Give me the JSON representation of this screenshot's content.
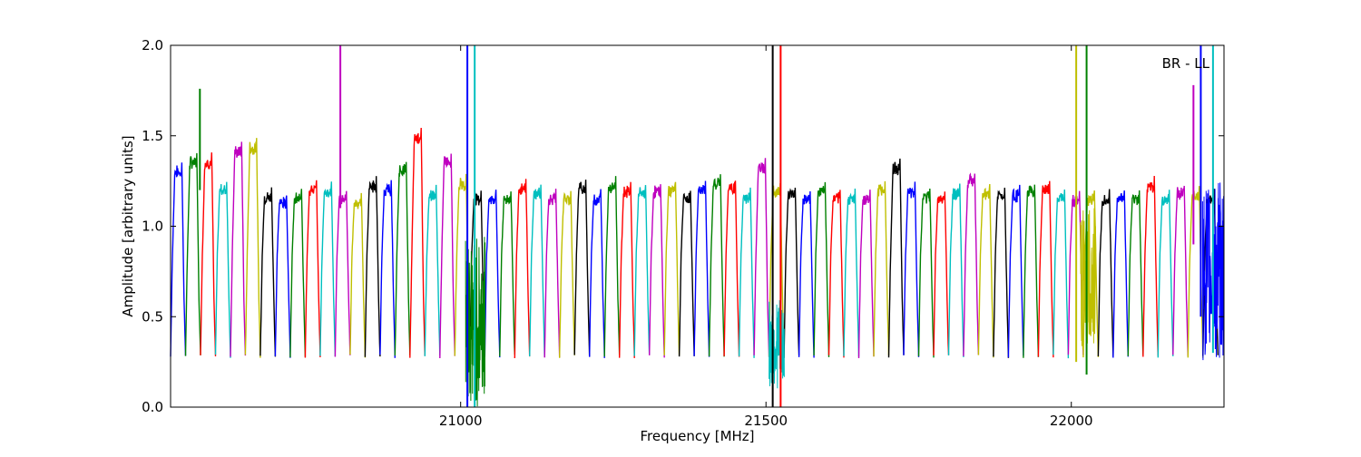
{
  "chart_data": {
    "type": "line",
    "title": "",
    "annotation": "BR - LL",
    "xlabel": "Frequency [MHz]",
    "ylabel": "Amplitude [arbitrary units]",
    "xlim": [
      20525,
      22250
    ],
    "ylim": [
      0.0,
      2.0
    ],
    "xticks": [
      21000,
      21500,
      22000
    ],
    "xtick_labels": [
      "21000",
      "21500",
      "22000"
    ],
    "yticks": [
      0.0,
      0.5,
      1.0,
      1.5,
      2.0
    ],
    "ytick_labels": [
      "0.0",
      "0.5",
      "1.0",
      "1.5",
      "2.0"
    ],
    "grid": false,
    "legend": "none",
    "colors": [
      "#0000ff",
      "#008000",
      "#ff0000",
      "#00bfbf",
      "#bf00bf",
      "#bfbf00",
      "#000000"
    ],
    "background_trace_color": "#bbbbbb",
    "channel_count": 70,
    "band_width_mhz": 24.5,
    "channel_peaks": [
      1.35,
      1.4,
      1.4,
      1.25,
      1.46,
      1.48,
      1.21,
      1.18,
      1.2,
      1.25,
      1.24,
      1.2,
      1.18,
      1.27,
      1.25,
      1.36,
      1.54,
      1.22,
      1.41,
      1.28,
      1.2,
      1.2,
      1.2,
      1.26,
      1.23,
      1.2,
      1.2,
      1.26,
      1.2,
      1.27,
      1.24,
      1.23,
      1.24,
      1.25,
      1.2,
      1.25,
      1.29,
      1.26,
      1.21,
      1.37,
      1.24,
      1.22,
      1.2,
      1.24,
      1.2,
      1.2,
      1.2,
      1.25,
      1.37,
      1.24,
      1.21,
      1.2,
      1.23,
      1.3,
      1.23,
      1.22,
      1.22,
      1.24,
      1.25,
      1.2,
      1.19,
      1.2,
      1.2,
      1.2,
      1.2,
      1.27,
      1.2,
      1.23,
      1.22,
      1.2
    ],
    "spikes": [
      {
        "x": 20573,
        "y_min": 1.2,
        "y_max": 1.76
      },
      {
        "x": 20803,
        "y_min": 1.1,
        "y_max": 2.0
      },
      {
        "x": 21011,
        "y_min": 0.0,
        "y_max": 2.0
      },
      {
        "x": 21023,
        "y_min": 0.0,
        "y_max": 2.0
      },
      {
        "x": 21511,
        "y_min": 0.0,
        "y_max": 2.0
      },
      {
        "x": 21524,
        "y_min": 0.0,
        "y_max": 2.0
      },
      {
        "x": 22008,
        "y_min": 0.25,
        "y_max": 2.0
      },
      {
        "x": 22025,
        "y_min": 0.18,
        "y_max": 2.0
      },
      {
        "x": 22200,
        "y_min": 0.9,
        "y_max": 1.78
      },
      {
        "x": 22212,
        "y_min": 0.5,
        "y_max": 2.0
      },
      {
        "x": 22232,
        "y_min": 0.3,
        "y_max": 2.0
      }
    ],
    "noise_regions": [
      {
        "x_start": 21008,
        "x_end": 21040,
        "y_min": 0.0,
        "y_max": 0.95,
        "color": "#008000"
      },
      {
        "x_start": 21505,
        "x_end": 21530,
        "y_min": 0.1,
        "y_max": 0.6,
        "color": "#00bfbf"
      },
      {
        "x_start": 22015,
        "x_end": 22040,
        "y_min": 0.3,
        "y_max": 1.1,
        "color": "#bfbf00"
      },
      {
        "x_start": 22215,
        "x_end": 22250,
        "y_min": 0.25,
        "y_max": 1.25,
        "color": "#0000ff"
      }
    ]
  }
}
